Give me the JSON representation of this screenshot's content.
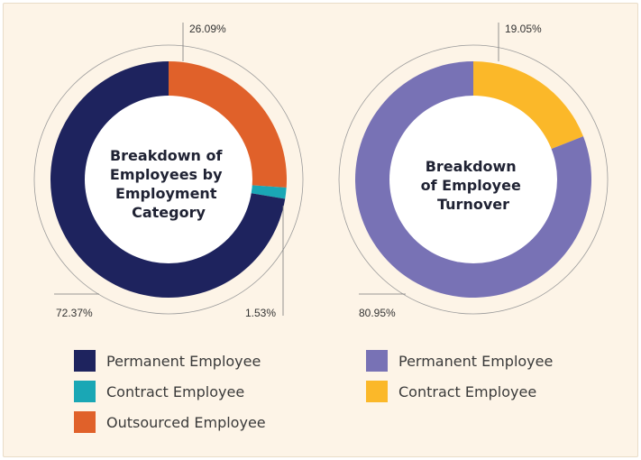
{
  "colors": {
    "background": "#fdf4e7",
    "permanent_left": "#1e235e",
    "contract_left": "#1aa7b5",
    "outsourced_left": "#e0612a",
    "permanent_right": "#7872b5",
    "contract_right": "#fbb829"
  },
  "chart_data": [
    {
      "type": "pie",
      "style": "donut",
      "title": "Breakdown of Employees by Employment Category",
      "title_lines": [
        "Breakdown of",
        "Employees by",
        "Employment",
        "Category"
      ],
      "series": [
        {
          "name": "Outsourced Employee",
          "value": 26.09,
          "label": "26.09%",
          "color": "#e0612a"
        },
        {
          "name": "Contract Employee",
          "value": 1.53,
          "label": "1.53%",
          "color": "#1aa7b5"
        },
        {
          "name": "Permanent Employee",
          "value": 72.37,
          "label": "72.37%",
          "color": "#1e235e"
        }
      ],
      "legend_position": "bottom",
      "legend": [
        {
          "label": "Permanent Employee",
          "color": "#1e235e"
        },
        {
          "label": "Contract Employee",
          "color": "#1aa7b5"
        },
        {
          "label": "Outsourced Employee",
          "color": "#e0612a"
        }
      ]
    },
    {
      "type": "pie",
      "style": "donut",
      "title": "Breakdown of Employee Turnover",
      "title_lines": [
        "Breakdown",
        "of Employee",
        "Turnover"
      ],
      "series": [
        {
          "name": "Contract Employee",
          "value": 19.05,
          "label": "19.05%",
          "color": "#fbb829"
        },
        {
          "name": "Permanent Employee",
          "value": 80.95,
          "label": "80.95%",
          "color": "#7872b5"
        }
      ],
      "legend_position": "bottom",
      "legend": [
        {
          "label": "Permanent Employee",
          "color": "#7872b5"
        },
        {
          "label": "Contract Employee",
          "color": "#fbb829"
        }
      ]
    }
  ]
}
